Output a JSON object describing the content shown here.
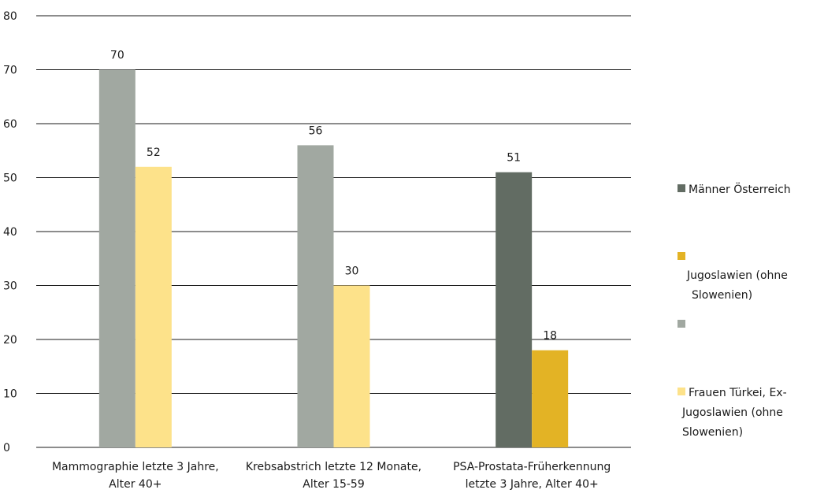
{
  "chart_data": {
    "type": "bar",
    "categories": [
      [
        "Mammographie letzte 3 Jahre,",
        "Alter 40+"
      ],
      [
        "Krebsabstrich letzte 12 Monate,",
        "Alter 15-59"
      ],
      [
        "PSA-Prostata-Früherkennung",
        "letzte 3 Jahre, Alter 40+"
      ]
    ],
    "series": [
      {
        "name": "Männer Österreich",
        "color": "#626c63",
        "values": [
          null,
          null,
          51
        ]
      },
      {
        "name": "Jugoslawien (ohne Slowenien)",
        "color": "#e3b325",
        "values": [
          null,
          null,
          18
        ]
      },
      {
        "name": "",
        "color": "#a1a8a1",
        "values": [
          70,
          56,
          null
        ]
      },
      {
        "name": "Frauen Türkei, Ex-Jugoslawien (ohne Slowenien)",
        "color": "#fde28a",
        "values": [
          52,
          30,
          null
        ]
      }
    ],
    "category_series": [
      [
        2,
        3
      ],
      [
        2,
        3
      ],
      [
        0,
        1
      ]
    ],
    "yticks": [
      0,
      10,
      20,
      30,
      40,
      50,
      60,
      70,
      80
    ],
    "ylim": [
      0,
      80
    ],
    "grid": true,
    "legend_position": "right",
    "title": "",
    "xlabel": "",
    "ylabel": ""
  },
  "legend": [
    {
      "lines": [
        "Männer Österreich"
      ]
    },
    {
      "lines": [
        "Jugoslawien (ohne",
        "Slowenien)"
      ]
    },
    {
      "lines": []
    },
    {
      "lines": [
        "Frauen Türkei, Ex-",
        "Jugoslawien (ohne",
        "Slowenien)"
      ]
    }
  ]
}
